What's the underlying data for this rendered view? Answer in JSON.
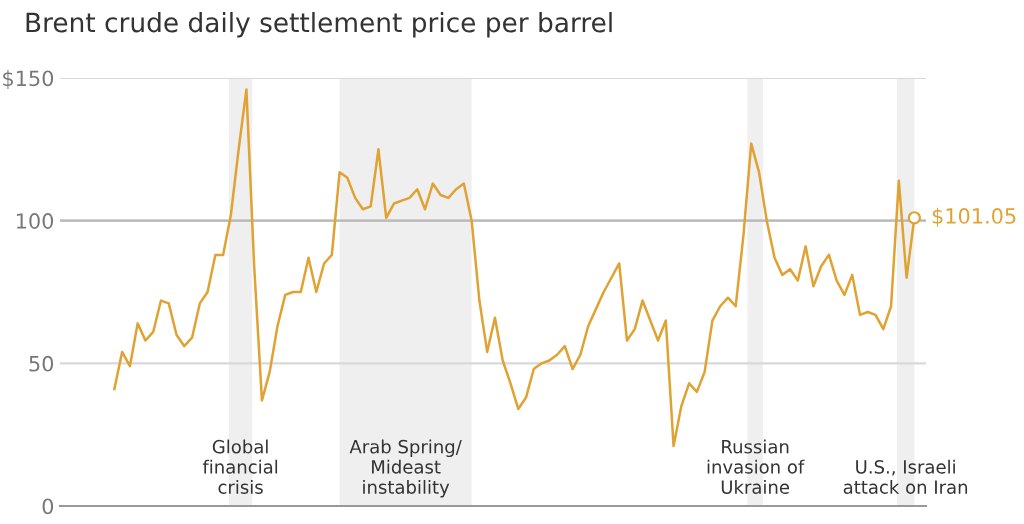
{
  "chart_data": {
    "type": "line",
    "title": "Brent crude daily settlement price per barrel",
    "categories": [
      null,
      null,
      null,
      null,
      null,
      null,
      null,
      null,
      null,
      null,
      null,
      null,
      null,
      null,
      null,
      null,
      null,
      null,
      null,
      null,
      null,
      null,
      null,
      null,
      null,
      null,
      null,
      null,
      null,
      null,
      null,
      null,
      null,
      null,
      null,
      null,
      null,
      null,
      null,
      null,
      null,
      null,
      null,
      null,
      null,
      null,
      null,
      null,
      null,
      null,
      null,
      null,
      null,
      null,
      null,
      null,
      null,
      null,
      null,
      null,
      null,
      null,
      null,
      null,
      null,
      null,
      null,
      null,
      null,
      null,
      null,
      null,
      null,
      null,
      null,
      null,
      null,
      null,
      null,
      null,
      null,
      null,
      null,
      null,
      null,
      null,
      null,
      null,
      null,
      null,
      null,
      null,
      null,
      null,
      null,
      null,
      null,
      null,
      null,
      null,
      null,
      null,
      null,
      null
    ],
    "series": [
      {
        "color": "#e0a232",
        "values": [
          41,
          54,
          49,
          64,
          58,
          61,
          72,
          71,
          60,
          56,
          59,
          71,
          75,
          88,
          88,
          102,
          125,
          146,
          84,
          37,
          47,
          63,
          74,
          75,
          75,
          87,
          75,
          85,
          88,
          117,
          115,
          108,
          104,
          105,
          125,
          101,
          106,
          107,
          108,
          111,
          104,
          113,
          109,
          108,
          111,
          113,
          100,
          72,
          54,
          66,
          51,
          43,
          34,
          38,
          48,
          50,
          51,
          53,
          56,
          48,
          53,
          63,
          69,
          75,
          80,
          85,
          58,
          62,
          72,
          65,
          58,
          65,
          21,
          35,
          43,
          40,
          47,
          65,
          70,
          73,
          70,
          95,
          127,
          117,
          100,
          87,
          81,
          83,
          79,
          91,
          77,
          84,
          88,
          79,
          74,
          81,
          67,
          68,
          67,
          62,
          70,
          114,
          80,
          101
        ]
      }
    ],
    "ylim": [
      0,
      150
    ],
    "yticks": [
      {
        "value": 0,
        "label": "0"
      },
      {
        "value": 50,
        "label": "50"
      },
      {
        "value": 100,
        "label": "100"
      },
      {
        "value": 150,
        "label": "$150"
      }
    ],
    "grid": "y",
    "marker": "none",
    "line_style": "solid",
    "ref_lines": [
      {
        "axis": "y",
        "value": 100,
        "color": "#b8b8b8"
      }
    ],
    "annotations": [
      "Global\nfinancial\ncrisis",
      "Arab Spring/\nMideast\ninstability",
      "Russian\ninvasion of\nUkraine",
      "U.S., Israeli\nattack on Iran",
      "$101.05"
    ]
  }
}
